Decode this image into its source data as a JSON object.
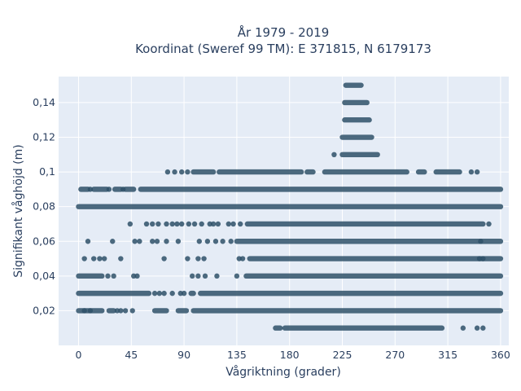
{
  "chart_data": {
    "type": "scatter",
    "title_line1": "År 1979 - 2019",
    "title_line2": "Koordinat (Sweref 99 TM): E 371815, N 6179173",
    "xlabel": "Vågriktning (grader)",
    "ylabel": "Signifikant våghöjd (m)",
    "xlim": [
      -17,
      367
    ],
    "ylim": [
      0.0,
      0.155
    ],
    "x_ticks": [
      0,
      45,
      90,
      135,
      180,
      225,
      270,
      315,
      360
    ],
    "x_tick_labels": [
      "0",
      "45",
      "90",
      "135",
      "180",
      "225",
      "270",
      "315",
      "360"
    ],
    "y_ticks": [
      0.02,
      0.04,
      0.06,
      0.08,
      0.1,
      0.12,
      0.14
    ],
    "y_tick_labels": [
      "0,02",
      "0,04",
      "0,06",
      "0,08",
      "0,1",
      "0,12",
      "0,14"
    ],
    "grid": true,
    "marker_color": "#2f5168",
    "background_color": "#e5ecf6",
    "series": [
      {
        "rows": [
          {
            "y": 0.01,
            "segments": [
              [
                168,
                172
              ],
              [
                176,
                310
              ]
            ],
            "points": [
              328,
              340,
              345
            ]
          },
          {
            "y": 0.02,
            "segments": [
              [
                0,
                20
              ],
              [
                26,
                30
              ],
              [
                65,
                75
              ],
              [
                85,
                92
              ],
              [
                98,
                360
              ]
            ],
            "points": [
              5,
              10,
              33,
              36,
              40,
              46
            ]
          },
          {
            "y": 0.03,
            "segments": [
              [
                0,
                60
              ],
              [
                96,
                98
              ],
              [
                104,
                360
              ]
            ],
            "points": [
              65,
              69,
              73,
              80,
              87,
              90
            ]
          },
          {
            "y": 0.04,
            "segments": [
              [
                0,
                20
              ],
              [
                143,
                360
              ]
            ],
            "points": [
              25,
              30,
              47,
              50,
              97,
              102,
              108,
              118,
              135
            ]
          },
          {
            "y": 0.05,
            "segments": [
              [
                146,
                360
              ]
            ],
            "points": [
              5,
              13,
              18,
              22,
              36,
              73,
              93,
              102,
              107,
              137,
              140,
              342,
              345
            ]
          },
          {
            "y": 0.06,
            "segments": [
              [
                135,
                360
              ]
            ],
            "points": [
              8,
              29,
              48,
              52,
              63,
              67,
              75,
              85,
              103,
              110,
              117,
              123,
              130,
              343
            ]
          },
          {
            "y": 0.07,
            "segments": [
              [
                144,
                345
              ]
            ],
            "points": [
              44,
              58,
              63,
              68,
              75,
              80,
              84,
              88,
              94,
              99,
              105,
              112,
              115,
              119,
              128,
              132,
              138,
              350
            ]
          },
          {
            "y": 0.08,
            "segments": [
              [
                0,
                360
              ]
            ],
            "points": []
          },
          {
            "y": 0.09,
            "segments": [
              [
                2,
                8
              ],
              [
                13,
                24
              ],
              [
                31,
                36
              ],
              [
                40,
                47
              ],
              [
                53,
                360
              ]
            ],
            "points": [
              10,
              26,
              38
            ]
          },
          {
            "y": 0.1,
            "segments": [
              [
                98,
                115
              ],
              [
                120,
                190
              ],
              [
                195,
                200
              ],
              [
                210,
                280
              ],
              [
                290,
                295
              ],
              [
                305,
                325
              ]
            ],
            "points": [
              76,
              82,
              88,
              93,
              335,
              340
            ]
          },
          {
            "y": 0.11,
            "segments": [
              [
                225,
                255
              ]
            ],
            "points": [
              218
            ]
          },
          {
            "y": 0.12,
            "segments": [
              [
                225,
                250
              ]
            ],
            "points": []
          },
          {
            "y": 0.13,
            "segments": [
              [
                227,
                248
              ]
            ],
            "points": []
          },
          {
            "y": 0.14,
            "segments": [
              [
                227,
                246
              ]
            ],
            "points": []
          },
          {
            "y": 0.15,
            "segments": [
              [
                228,
                241
              ]
            ],
            "points": []
          }
        ]
      }
    ]
  }
}
